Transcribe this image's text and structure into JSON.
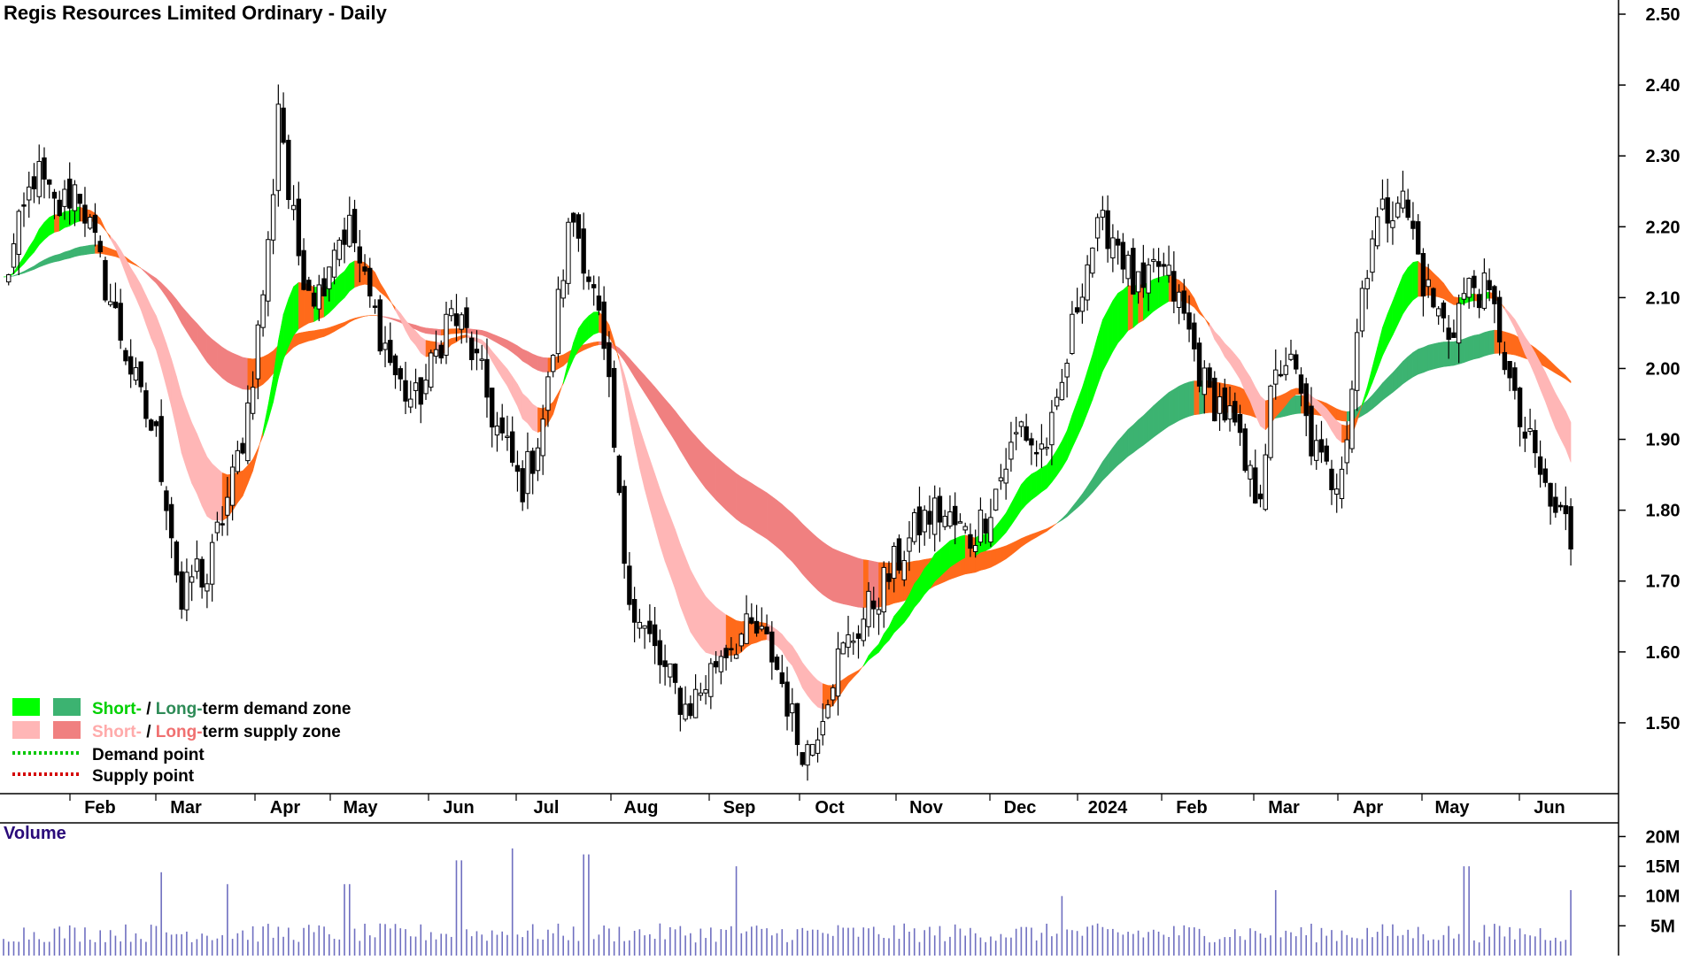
{
  "chart_data": [
    {
      "type": "candlestick",
      "title": "Regis Resources Limited Ordinary - Daily",
      "ylim": [
        1.4,
        2.52
      ],
      "y_ticks": [
        "1.50",
        "1.60",
        "1.70",
        "1.80",
        "1.90",
        "2.00",
        "2.10",
        "2.20",
        "2.30",
        "2.40",
        "2.50"
      ],
      "x_ticks": [
        "Feb",
        "Mar",
        "Apr",
        "May",
        "Jun",
        "Jul",
        "Aug",
        "Sep",
        "Oct",
        "Nov",
        "Dec",
        "2024",
        "Feb",
        "Mar",
        "Apr",
        "May",
        "Jun"
      ],
      "close_path": [
        [
          0,
          2.12
        ],
        [
          8,
          2.2
        ],
        [
          15,
          2.28
        ],
        [
          25,
          2.22
        ],
        [
          35,
          2.26
        ],
        [
          45,
          2.15
        ],
        [
          55,
          2.05
        ],
        [
          65,
          1.95
        ],
        [
          72,
          1.9
        ],
        [
          78,
          1.8
        ],
        [
          84,
          1.66
        ],
        [
          90,
          1.72
        ],
        [
          96,
          1.7
        ],
        [
          102,
          1.78
        ],
        [
          108,
          1.84
        ],
        [
          114,
          1.92
        ],
        [
          120,
          2.05
        ],
        [
          126,
          2.2
        ],
        [
          130,
          2.4
        ],
        [
          134,
          2.25
        ],
        [
          140,
          2.15
        ],
        [
          148,
          2.1
        ],
        [
          156,
          2.18
        ],
        [
          164,
          2.2
        ],
        [
          170,
          2.12
        ],
        [
          178,
          2.05
        ],
        [
          186,
          1.98
        ],
        [
          194,
          1.95
        ],
        [
          202,
          2.0
        ],
        [
          210,
          2.08
        ],
        [
          218,
          2.05
        ],
        [
          226,
          1.98
        ],
        [
          232,
          1.92
        ],
        [
          238,
          1.88
        ],
        [
          244,
          1.83
        ],
        [
          250,
          1.88
        ],
        [
          256,
          1.95
        ],
        [
          262,
          2.1
        ],
        [
          268,
          2.22
        ],
        [
          274,
          2.16
        ],
        [
          280,
          2.08
        ],
        [
          286,
          1.95
        ],
        [
          292,
          1.75
        ],
        [
          298,
          1.65
        ],
        [
          304,
          1.62
        ],
        [
          310,
          1.58
        ],
        [
          316,
          1.55
        ],
        [
          322,
          1.52
        ],
        [
          330,
          1.55
        ],
        [
          338,
          1.6
        ],
        [
          346,
          1.62
        ],
        [
          354,
          1.63
        ],
        [
          362,
          1.6
        ],
        [
          368,
          1.55
        ],
        [
          374,
          1.48
        ],
        [
          380,
          1.46
        ],
        [
          386,
          1.52
        ],
        [
          392,
          1.58
        ],
        [
          400,
          1.62
        ],
        [
          408,
          1.66
        ],
        [
          416,
          1.7
        ],
        [
          424,
          1.74
        ],
        [
          432,
          1.78
        ],
        [
          440,
          1.8
        ],
        [
          448,
          1.78
        ],
        [
          456,
          1.76
        ],
        [
          464,
          1.8
        ],
        [
          472,
          1.86
        ],
        [
          480,
          1.92
        ],
        [
          488,
          1.88
        ],
        [
          496,
          1.92
        ],
        [
          502,
          2.02
        ],
        [
          508,
          2.12
        ],
        [
          514,
          2.18
        ],
        [
          520,
          2.2
        ],
        [
          526,
          2.18
        ],
        [
          532,
          2.12
        ],
        [
          538,
          2.1
        ],
        [
          544,
          2.15
        ],
        [
          550,
          2.12
        ],
        [
          556,
          2.08
        ],
        [
          562,
          2.02
        ],
        [
          568,
          1.96
        ],
        [
          574,
          1.95
        ],
        [
          580,
          1.92
        ],
        [
          586,
          1.85
        ],
        [
          592,
          1.82
        ],
        [
          598,
          1.96
        ],
        [
          604,
          2.02
        ],
        [
          610,
          1.98
        ],
        [
          616,
          1.9
        ],
        [
          622,
          1.86
        ],
        [
          628,
          1.84
        ],
        [
          634,
          1.92
        ],
        [
          640,
          2.1
        ],
        [
          646,
          2.2
        ],
        [
          652,
          2.22
        ],
        [
          658,
          2.25
        ],
        [
          664,
          2.2
        ],
        [
          670,
          2.12
        ],
        [
          676,
          2.08
        ],
        [
          682,
          2.05
        ],
        [
          688,
          2.1
        ],
        [
          694,
          2.12
        ],
        [
          700,
          2.1
        ],
        [
          706,
          2.05
        ],
        [
          712,
          1.95
        ],
        [
          718,
          1.9
        ],
        [
          724,
          1.86
        ],
        [
          730,
          1.8
        ],
        [
          736,
          1.79
        ],
        [
          740,
          1.75
        ]
      ],
      "volume": {
        "ylim": [
          0,
          22
        ],
        "y_ticks": [
          "5M",
          "10M",
          "15M",
          "20M"
        ],
        "label": "Volume",
        "spikes": [
          [
            75,
            14
          ],
          [
            105,
            12
          ],
          [
            162,
            12
          ],
          [
            215,
            16
          ],
          [
            240,
            18
          ],
          [
            275,
            17
          ],
          [
            346,
            15
          ],
          [
            500,
            10
          ],
          [
            600,
            11
          ],
          [
            690,
            15
          ],
          [
            740,
            11
          ]
        ]
      },
      "legend": {
        "short_prefix": "Short-",
        "sep": " / ",
        "long_prefix": "Long-",
        "demand_suffix": "term demand zone",
        "supply_suffix": "term supply zone",
        "demand_point": "Demand point",
        "supply_point": "Supply point"
      },
      "colors": {
        "short_demand": "#00ff00",
        "long_demand": "#3cb371",
        "short_supply": "#ffb6b6",
        "long_supply": "#f08080",
        "supply_orange": "#ff6a1a",
        "volume_bar": "#6f6fc0",
        "demand_point": "#00c800",
        "supply_point": "#d40000"
      }
    }
  ]
}
